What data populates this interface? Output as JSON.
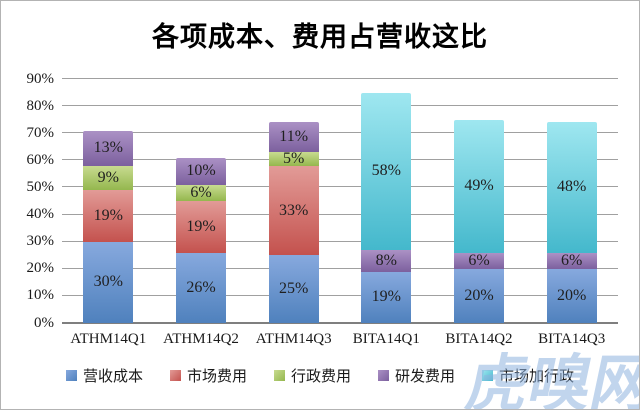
{
  "title": "各项成本、费用占营收这比",
  "watermark": "虎嗅网",
  "chart_data": {
    "type": "bar",
    "subtype": "stacked",
    "title": "各项成本、费用占营收这比",
    "categories": [
      "ATHM14Q1",
      "ATHM14Q2",
      "ATHM14Q3",
      "BITA14Q1",
      "BITA14Q2",
      "BITA14Q3"
    ],
    "series": [
      {
        "name": "营收成本",
        "color": "#4f81bd",
        "color_light": "#87a9de",
        "values": [
          30,
          26,
          25,
          19,
          20,
          20
        ]
      },
      {
        "name": "市场费用",
        "color": "#c4524e",
        "color_light": "#e29b97",
        "values": [
          19,
          19,
          33,
          0,
          0,
          0
        ]
      },
      {
        "name": "行政费用",
        "color": "#94b74e",
        "color_light": "#c8db90",
        "values": [
          9,
          6,
          5,
          0,
          0,
          0
        ]
      },
      {
        "name": "研发费用",
        "color": "#7c609e",
        "color_light": "#ab91c5",
        "values": [
          13,
          10,
          11,
          8,
          6,
          6
        ]
      },
      {
        "name": "市场加行政",
        "color": "#44b8cc",
        "color_light": "#9fe7f0",
        "values": [
          0,
          0,
          0,
          58,
          49,
          48
        ]
      }
    ],
    "stack_totals": [
      71,
      61,
      74,
      85,
      75,
      74
    ],
    "xlabel": "",
    "ylabel": "",
    "ylim": [
      0,
      90
    ],
    "ytick_step": 10,
    "ytick_suffix": "%",
    "data_label_suffix": "%",
    "grid": true,
    "legend_position": "bottom"
  }
}
